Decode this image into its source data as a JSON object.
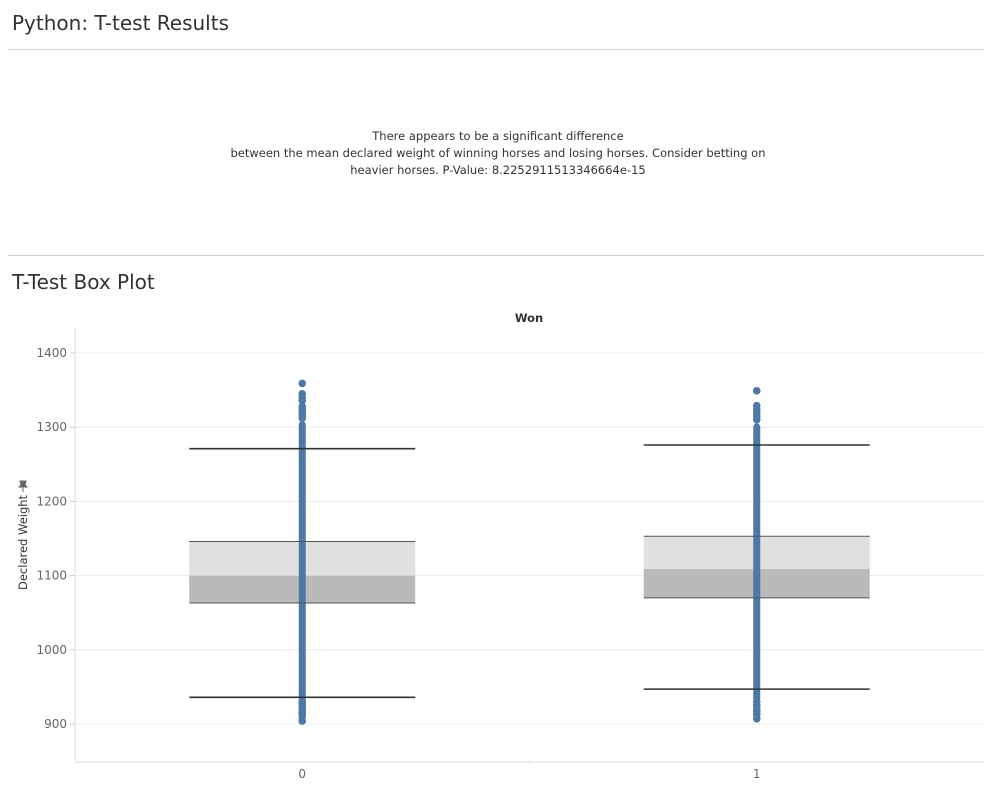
{
  "header": {
    "title": "Python: T-test Results"
  },
  "result": {
    "line1": "There appears to be a significant difference",
    "line2": "between the mean declared weight of winning horses and losing horses. Consider betting on",
    "line3": "heavier horses. P-Value: 8.2252911513346664e-15"
  },
  "boxplot_section": {
    "title": "T-Test Box Plot"
  },
  "colors": {
    "points": "#4e79a7",
    "lower_box": "#bababa",
    "upper_box": "#e0e0e0",
    "whisker": "#333333"
  },
  "chart_data": {
    "type": "boxplot",
    "column_header": "Won",
    "ylabel": "Declared Weight",
    "ylim": [
      880,
      1420
    ],
    "yticks": [
      900,
      1000,
      1100,
      1200,
      1300,
      1400
    ],
    "categories": [
      "0",
      "1"
    ],
    "boxes": [
      {
        "category": "0",
        "whisker_low": 936,
        "q1": 1063,
        "median": 1100,
        "q3": 1146,
        "whisker_high": 1271,
        "points_range": [
          918,
          1308
        ],
        "outliers_high": [
          1312,
          1316,
          1320,
          1324,
          1328,
          1336,
          1340,
          1345,
          1359
        ],
        "outliers_low": [
          904,
          910,
          914,
          916,
          920,
          924,
          928,
          930
        ]
      },
      {
        "category": "1",
        "whisker_low": 947,
        "q1": 1070,
        "median": 1109,
        "q3": 1153,
        "whisker_high": 1276,
        "points_range": [
          930,
          1305
        ],
        "outliers_high": [
          1310,
          1315,
          1320,
          1324,
          1329,
          1349
        ],
        "outliers_low": [
          907,
          913,
          917,
          920,
          925,
          930
        ]
      }
    ]
  }
}
